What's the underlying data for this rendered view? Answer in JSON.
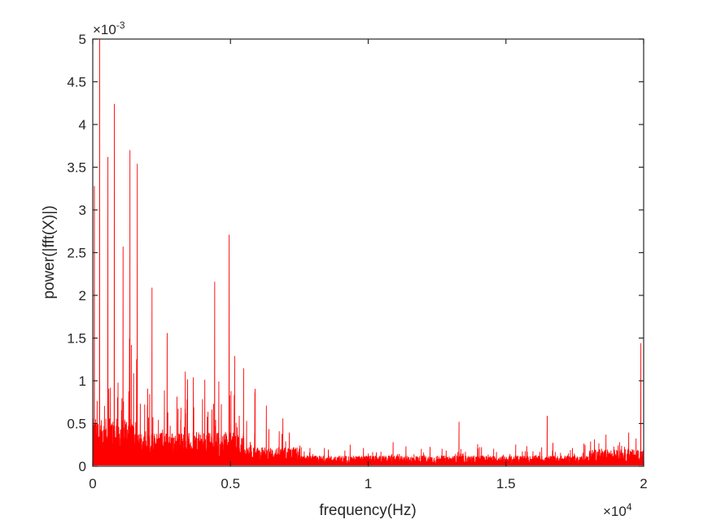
{
  "chart_data": {
    "type": "line",
    "title": "",
    "xlabel": "frequency(Hz)",
    "ylabel": "power(|fft(X)|)",
    "x_multiplier": "×10^4",
    "y_multiplier": "×10^-3",
    "xlim": [
      0,
      20000
    ],
    "ylim": [
      0,
      0.005
    ],
    "grid": false,
    "legend": null,
    "line_color": "#ff0000",
    "x_ticks": [
      0,
      0.5,
      1,
      1.5,
      2
    ],
    "x_tick_labels": [
      "0",
      "0.5",
      "1",
      "1.5",
      "2"
    ],
    "y_ticks": [
      0,
      0.5,
      1,
      1.5,
      2,
      2.5,
      3,
      3.5,
      4,
      4.5,
      5
    ],
    "y_tick_labels": [
      "0",
      "0.5",
      "1",
      "1.5",
      "2",
      "2.5",
      "3",
      "3.5",
      "4",
      "4.5",
      "5"
    ],
    "notable_peaks": [
      {
        "x": 0,
        "y": 0.005
      },
      {
        "x": 60,
        "y": 0.00328
      },
      {
        "x": 250,
        "y": 0.005
      },
      {
        "x": 550,
        "y": 0.00362
      },
      {
        "x": 780,
        "y": 0.00424
      },
      {
        "x": 1100,
        "y": 0.00257
      },
      {
        "x": 1350,
        "y": 0.0037
      },
      {
        "x": 1620,
        "y": 0.00354
      },
      {
        "x": 1400,
        "y": 0.00142
      },
      {
        "x": 2150,
        "y": 0.00209
      },
      {
        "x": 2700,
        "y": 0.00156
      },
      {
        "x": 3650,
        "y": 0.00104
      },
      {
        "x": 4430,
        "y": 0.00216
      },
      {
        "x": 4950,
        "y": 0.00271
      },
      {
        "x": 5150,
        "y": 0.00129
      },
      {
        "x": 6300,
        "y": 0.00071
      },
      {
        "x": 6900,
        "y": 0.00056
      },
      {
        "x": 13300,
        "y": 0.00052
      },
      {
        "x": 16500,
        "y": 0.00059
      },
      {
        "x": 19900,
        "y": 0.00144
      }
    ],
    "noise_floor_description": "dense broadband noise ~0.0001-0.0005 below 7000 Hz, ~0.00005-0.0002 above"
  },
  "axes": {
    "x_label": "frequency(Hz)",
    "y_label": "power(|fft(X)|)",
    "x_exponent_base": "×10",
    "x_exponent_power": "4",
    "y_exponent_base": "×10",
    "y_exponent_power": "-3"
  }
}
